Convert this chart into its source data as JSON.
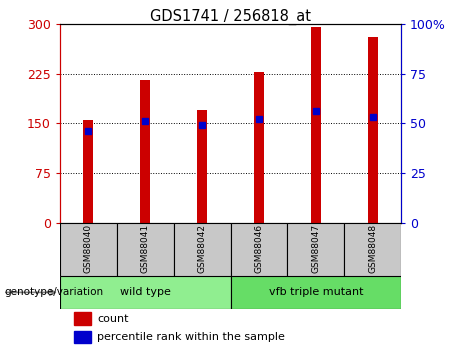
{
  "title": "GDS1741 / 256818_at",
  "samples": [
    "GSM88040",
    "GSM88041",
    "GSM88042",
    "GSM88046",
    "GSM88047",
    "GSM88048"
  ],
  "counts": [
    155,
    215,
    170,
    228,
    295,
    280
  ],
  "percentile_ranks": [
    46,
    51,
    49,
    52,
    56,
    53
  ],
  "groups": [
    {
      "label": "wild type",
      "color": "#90EE90",
      "start": 0,
      "end": 3
    },
    {
      "label": "vfb triple mutant",
      "color": "#66DD66",
      "start": 3,
      "end": 6
    }
  ],
  "bar_color": "#CC0000",
  "marker_color": "#0000CC",
  "left_ylim": [
    0,
    300
  ],
  "right_ylim": [
    0,
    100
  ],
  "left_yticks": [
    0,
    75,
    150,
    225,
    300
  ],
  "right_yticks": [
    0,
    25,
    50,
    75,
    100
  ],
  "left_ycolor": "#CC0000",
  "right_ycolor": "#0000CC",
  "bg_color": "#FFFFFF",
  "plot_bg": "#FFFFFF",
  "bar_width": 0.18,
  "xlabel_area_color": "#C8C8C8",
  "genotype_label": "genotype/variation",
  "legend_count_label": "count",
  "legend_pct_label": "percentile rank within the sample"
}
